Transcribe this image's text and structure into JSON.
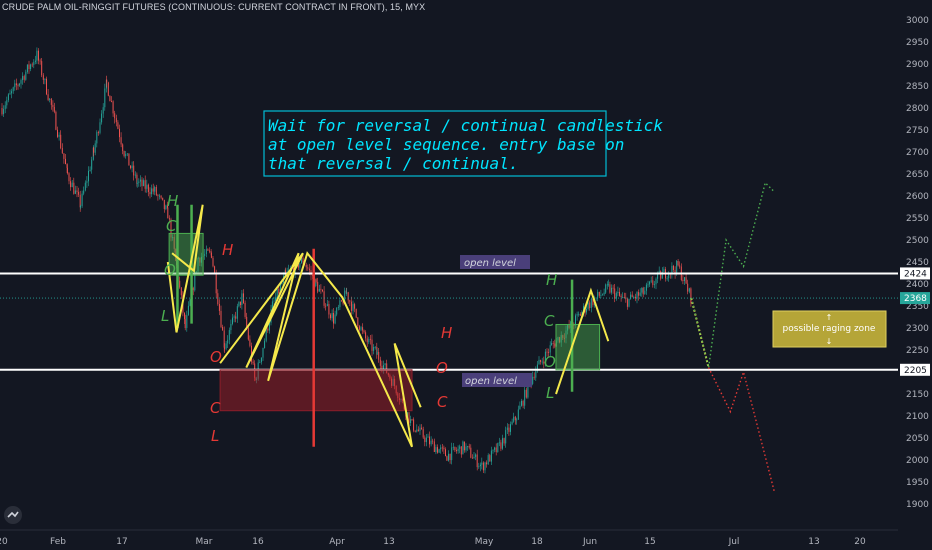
{
  "header": {
    "title": "CRUDE PALM OIL-RINGGIT FUTURES (CONTINUOUS: CURRENT CONTRACT IN FRONT), 15, MYX"
  },
  "chart_data": {
    "type": "line",
    "title": "CRUDE PALM OIL-RINGGIT FUTURES (CONTINUOUS: CURRENT CONTRACT IN FRONT), 15, MYX",
    "y_axis": {
      "ticks": [
        3000,
        2950,
        2900,
        2850,
        2800,
        2750,
        2700,
        2650,
        2600,
        2550,
        2500,
        2450,
        2400,
        2350,
        2300,
        2250,
        2200,
        2150,
        2100,
        2050,
        2000,
        1950,
        1900
      ],
      "ylim": [
        1885,
        3005
      ]
    },
    "x_axis": {
      "ticks": [
        "20",
        "Feb",
        "17",
        "Mar",
        "16",
        "Apr",
        "13",
        "May",
        "18",
        "Jun",
        "15",
        "Jul",
        "13",
        "20"
      ]
    },
    "price_labels": [
      {
        "label": "2424",
        "value": 2424,
        "color": "#ffffff"
      },
      {
        "label": "2368",
        "value": 2368,
        "color": "#26a69a"
      },
      {
        "label": "2205",
        "value": 2205,
        "color": "#ffffff"
      }
    ],
    "horizontal_lines": [
      {
        "value": 2424,
        "color": "#ffffff"
      },
      {
        "value": 2205,
        "color": "#ffffff"
      }
    ],
    "current_price_line": {
      "value": 2368,
      "color": "#26a69a"
    },
    "price_path": [
      {
        "x": "Jan 20",
        "y": 2800
      },
      {
        "x": "Jan 24",
        "y": 2860
      },
      {
        "x": "Jan 28",
        "y": 2920
      },
      {
        "x": "Feb 1",
        "y": 2780
      },
      {
        "x": "Feb 4",
        "y": 2650
      },
      {
        "x": "Feb 7",
        "y": 2580
      },
      {
        "x": "Feb 10",
        "y": 2700
      },
      {
        "x": "Feb 13",
        "y": 2855
      },
      {
        "x": "Feb 17",
        "y": 2700
      },
      {
        "x": "Feb 20",
        "y": 2630
      },
      {
        "x": "Feb 24",
        "y": 2610
      },
      {
        "x": "Feb 27",
        "y": 2560
      },
      {
        "x": "Mar 1",
        "y": 2440
      },
      {
        "x": "Mar 3",
        "y": 2300
      },
      {
        "x": "Mar 6",
        "y": 2460
      },
      {
        "x": "Mar 9",
        "y": 2470
      },
      {
        "x": "Mar 12",
        "y": 2260
      },
      {
        "x": "Mar 16",
        "y": 2370
      },
      {
        "x": "Mar 19",
        "y": 2180
      },
      {
        "x": "Mar 23",
        "y": 2350
      },
      {
        "x": "Mar 26",
        "y": 2420
      },
      {
        "x": "Mar 30",
        "y": 2455
      },
      {
        "x": "Apr 2",
        "y": 2400
      },
      {
        "x": "Apr 6",
        "y": 2320
      },
      {
        "x": "Apr 9",
        "y": 2380
      },
      {
        "x": "Apr 13",
        "y": 2280
      },
      {
        "x": "Apr 16",
        "y": 2240
      },
      {
        "x": "Apr 20",
        "y": 2170
      },
      {
        "x": "Apr 24",
        "y": 2080
      },
      {
        "x": "Apr 28",
        "y": 2040
      },
      {
        "x": "May 2",
        "y": 2010
      },
      {
        "x": "May 6",
        "y": 2030
      },
      {
        "x": "May 10",
        "y": 1985
      },
      {
        "x": "May 14",
        "y": 2030
      },
      {
        "x": "May 18",
        "y": 2100
      },
      {
        "x": "May 22",
        "y": 2200
      },
      {
        "x": "May 26",
        "y": 2260
      },
      {
        "x": "May 30",
        "y": 2300
      },
      {
        "x": "Jun 3",
        "y": 2350
      },
      {
        "x": "Jun 8",
        "y": 2390
      },
      {
        "x": "Jun 12",
        "y": 2360
      },
      {
        "x": "Jun 16",
        "y": 2380
      },
      {
        "x": "Jun 20",
        "y": 2420
      },
      {
        "x": "Jun 24",
        "y": 2440
      },
      {
        "x": "Jun 27",
        "y": 2368
      }
    ],
    "annotations": [
      {
        "text": "Wait for reversal / continual candlestick at open level sequence. entry base on that reversal / continual.",
        "lines": [
          "Wait for reversal / continual candlestick",
          "at open level sequence. entry base on",
          "that reversal / continual."
        ],
        "color": "#ffffff"
      },
      {
        "text": "open level",
        "color": "#9598a1"
      },
      {
        "text": "open level",
        "color": "#9598a1"
      },
      {
        "text": "possible raging zone",
        "color": "#ffffff"
      }
    ],
    "ohlc_labels": {
      "first": [
        "H",
        "C",
        "O",
        "L"
      ],
      "first_h2": "H",
      "second": [
        "O",
        "C",
        "L"
      ],
      "third": [
        "H",
        "O",
        "C"
      ],
      "fourth": [
        "H",
        "C",
        "O",
        "L"
      ]
    },
    "projections": {
      "green": [
        {
          "x": "Jun 27",
          "y": 2368
        },
        {
          "x": "Jul 1",
          "y": 2210
        },
        {
          "x": "Jul 5",
          "y": 2500
        },
        {
          "x": "Jul 9",
          "y": 2440
        },
        {
          "x": "Jul 14",
          "y": 2630
        },
        {
          "x": "Jul 16",
          "y": 2610
        }
      ],
      "red": [
        {
          "x": "Jul 1",
          "y": 2210
        },
        {
          "x": "Jul 6",
          "y": 2110
        },
        {
          "x": "Jul 9",
          "y": 2200
        },
        {
          "x": "Jul 16",
          "y": 1930
        }
      ],
      "yellow": [
        {
          "x": "Jun 27",
          "y": 2368
        },
        {
          "x": "Jul 1",
          "y": 2210
        }
      ]
    },
    "legend": "none",
    "grid": false
  }
}
